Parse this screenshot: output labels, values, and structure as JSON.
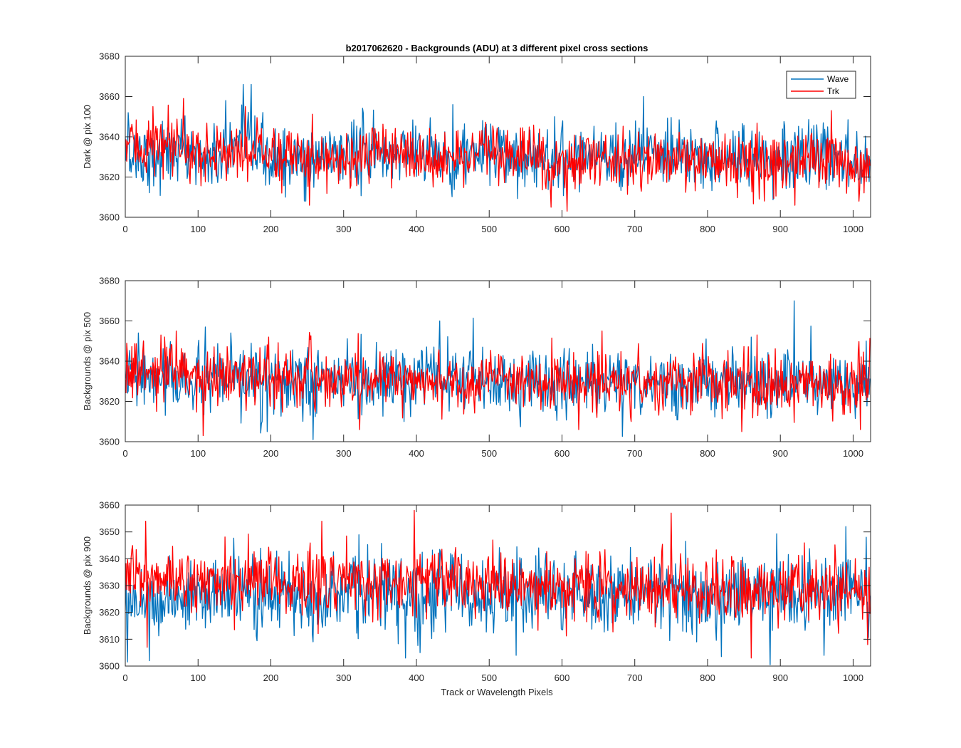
{
  "chart_data": {
    "type": "line",
    "title": "b2017062620 - Backgrounds (ADU) at 3 different pixel cross sections",
    "xlabel": "Track or Wavelength Pixels",
    "legend": {
      "entries": [
        "Wave",
        "Trk"
      ],
      "placement": "top-right"
    },
    "colors": {
      "Wave": "#0072BD",
      "Trk": "#FF0000"
    },
    "grid": false,
    "panels": [
      {
        "ylabel": "Dark @ pix 100",
        "xlim": [
          0,
          1024
        ],
        "ylim": [
          3600,
          3680
        ],
        "xticks": [
          0,
          100,
          200,
          300,
          400,
          500,
          600,
          700,
          800,
          900,
          1000
        ],
        "yticks": [
          3600,
          3620,
          3640,
          3660,
          3680
        ],
        "series": [
          {
            "name": "Wave",
            "mean": 3631,
            "noise_sd": 8,
            "x_count": 1024,
            "x_values": [
              0,
              40,
              80,
              120,
              160,
              200,
              240,
              280,
              320,
              360,
              400,
              440,
              480,
              520,
              560,
              600,
              640,
              680,
              720,
              760,
              800,
              840,
              880,
              920,
              960,
              1000,
              1024
            ],
            "values": [
              3632,
              3630,
              3634,
              3628,
              3635,
              3629,
              3627,
              3631,
              3633,
              3630,
              3636,
              3628,
              3632,
              3630,
              3631,
              3629,
              3633,
              3630,
              3632,
              3628,
              3631,
              3630,
              3629,
              3632,
              3630,
              3628,
              3631
            ],
            "peaks": [
              {
                "x": 162,
                "y": 3666
              },
              {
                "x": 173,
                "y": 3666
              },
              {
                "x": 138,
                "y": 3658
              },
              {
                "x": 712,
                "y": 3660
              },
              {
                "x": 4,
                "y": 3652
              },
              {
                "x": 248,
                "y": 3608
              },
              {
                "x": 450,
                "y": 3656
              },
              {
                "x": 590,
                "y": 3650
              },
              {
                "x": 220,
                "y": 3610
              }
            ]
          },
          {
            "name": "Trk",
            "mean": 3630,
            "noise_sd": 7,
            "x_count": 1024,
            "x_values": [
              0,
              40,
              80,
              120,
              160,
              200,
              240,
              280,
              320,
              360,
              400,
              440,
              480,
              520,
              560,
              600,
              640,
              680,
              720,
              760,
              800,
              840,
              880,
              920,
              960,
              1000,
              1024
            ],
            "values": [
              3636,
              3635,
              3633,
              3631,
              3634,
              3632,
              3630,
              3631,
              3629,
              3632,
              3630,
              3628,
              3633,
              3629,
              3631,
              3627,
              3630,
              3629,
              3628,
              3630,
              3627,
              3629,
              3626,
              3628,
              3627,
              3626,
              3628
            ],
            "peaks": [
              {
                "x": 80,
                "y": 3659
              },
              {
                "x": 165,
                "y": 3655
              },
              {
                "x": 38,
                "y": 3655
              },
              {
                "x": 253,
                "y": 3606
              },
              {
                "x": 585,
                "y": 3605
              },
              {
                "x": 607,
                "y": 3603
              },
              {
                "x": 920,
                "y": 3606
              },
              {
                "x": 970,
                "y": 3653
              },
              {
                "x": 1008,
                "y": 3608
              }
            ]
          }
        ]
      },
      {
        "ylabel": "Backgrounds @ pix 500",
        "xlim": [
          0,
          1024
        ],
        "ylim": [
          3600,
          3680
        ],
        "xticks": [
          0,
          100,
          200,
          300,
          400,
          500,
          600,
          700,
          800,
          900,
          1000
        ],
        "yticks": [
          3600,
          3620,
          3640,
          3660,
          3680
        ],
        "series": [
          {
            "name": "Wave",
            "mean": 3630,
            "noise_sd": 8,
            "x_count": 1024,
            "x_values": [
              0,
              40,
              80,
              120,
              160,
              200,
              240,
              280,
              320,
              360,
              400,
              440,
              480,
              520,
              560,
              600,
              640,
              680,
              720,
              760,
              800,
              840,
              880,
              920,
              960,
              1000,
              1024
            ],
            "values": [
              3632,
              3631,
              3630,
              3629,
              3631,
              3630,
              3628,
              3631,
              3630,
              3629,
              3631,
              3630,
              3632,
              3629,
              3630,
              3628,
              3631,
              3629,
              3630,
              3628,
              3630,
              3629,
              3628,
              3630,
              3629,
              3628,
              3630
            ],
            "peaks": [
              {
                "x": 919,
                "y": 3670
              },
              {
                "x": 432,
                "y": 3660
              },
              {
                "x": 110,
                "y": 3657
              },
              {
                "x": 258,
                "y": 3601
              },
              {
                "x": 195,
                "y": 3605
              },
              {
                "x": 1018,
                "y": 3650
              },
              {
                "x": 18,
                "y": 3654
              },
              {
                "x": 860,
                "y": 3652
              }
            ]
          },
          {
            "name": "Trk",
            "mean": 3631,
            "noise_sd": 7,
            "x_count": 1024,
            "x_values": [
              0,
              40,
              80,
              120,
              160,
              200,
              240,
              280,
              320,
              360,
              400,
              440,
              480,
              520,
              560,
              600,
              640,
              680,
              720,
              760,
              800,
              840,
              880,
              920,
              960,
              1000,
              1024
            ],
            "values": [
              3636,
              3634,
              3633,
              3632,
              3633,
              3631,
              3632,
              3630,
              3631,
              3630,
              3632,
              3629,
              3631,
              3630,
              3629,
              3631,
              3628,
              3630,
              3629,
              3628,
              3630,
              3629,
              3628,
              3630,
              3629,
              3628,
              3630
            ],
            "peaks": [
              {
                "x": 107,
                "y": 3603
              },
              {
                "x": 322,
                "y": 3606
              },
              {
                "x": 70,
                "y": 3655
              },
              {
                "x": 197,
                "y": 3652
              },
              {
                "x": 623,
                "y": 3606
              },
              {
                "x": 655,
                "y": 3655
              },
              {
                "x": 847,
                "y": 3605
              },
              {
                "x": 1010,
                "y": 3606
              }
            ]
          }
        ]
      },
      {
        "ylabel": "Backgrounds @ pix 900",
        "xlim": [
          0,
          1024
        ],
        "ylim": [
          3600,
          3660
        ],
        "xticks": [
          0,
          100,
          200,
          300,
          400,
          500,
          600,
          700,
          800,
          900,
          1000
        ],
        "yticks": [
          3600,
          3610,
          3620,
          3630,
          3640,
          3650,
          3660
        ],
        "series": [
          {
            "name": "Wave",
            "mean": 3627,
            "noise_sd": 7,
            "x_count": 1024,
            "x_values": [
              0,
              40,
              80,
              120,
              160,
              200,
              240,
              280,
              320,
              360,
              400,
              440,
              480,
              520,
              560,
              600,
              640,
              680,
              720,
              760,
              800,
              840,
              880,
              920,
              960,
              1000,
              1024
            ],
            "values": [
              3626,
              3625,
              3626,
              3627,
              3626,
              3627,
              3626,
              3628,
              3627,
              3626,
              3627,
              3628,
              3627,
              3626,
              3628,
              3627,
              3626,
              3627,
              3628,
              3627,
              3626,
              3627,
              3628,
              3627,
              3628,
              3627,
              3626
            ],
            "peaks": [
              {
                "x": 886,
                "y": 3600
              },
              {
                "x": 33,
                "y": 3602
              },
              {
                "x": 385,
                "y": 3603
              },
              {
                "x": 405,
                "y": 3605
              },
              {
                "x": 537,
                "y": 3604
              },
              {
                "x": 960,
                "y": 3604
              },
              {
                "x": 990,
                "y": 3652
              },
              {
                "x": 1018,
                "y": 3648
              }
            ]
          },
          {
            "name": "Trk",
            "mean": 3631,
            "noise_sd": 6,
            "x_count": 1024,
            "x_values": [
              0,
              40,
              80,
              120,
              160,
              200,
              240,
              280,
              320,
              360,
              400,
              440,
              480,
              520,
              560,
              600,
              640,
              680,
              720,
              760,
              800,
              840,
              880,
              920,
              960,
              1000,
              1024
            ],
            "values": [
              3632,
              3633,
              3632,
              3631,
              3632,
              3633,
              3631,
              3632,
              3631,
              3632,
              3633,
              3631,
              3630,
              3631,
              3630,
              3629,
              3630,
              3629,
              3630,
              3629,
              3628,
              3630,
              3628,
              3629,
              3628,
              3627,
              3628
            ],
            "peaks": [
              {
                "x": 397,
                "y": 3658
              },
              {
                "x": 750,
                "y": 3657
              },
              {
                "x": 270,
                "y": 3654
              },
              {
                "x": 28,
                "y": 3654
              },
              {
                "x": 30,
                "y": 3607
              },
              {
                "x": 860,
                "y": 3603
              },
              {
                "x": 1020,
                "y": 3608
              },
              {
                "x": 505,
                "y": 3647
              }
            ]
          }
        ]
      }
    ]
  }
}
